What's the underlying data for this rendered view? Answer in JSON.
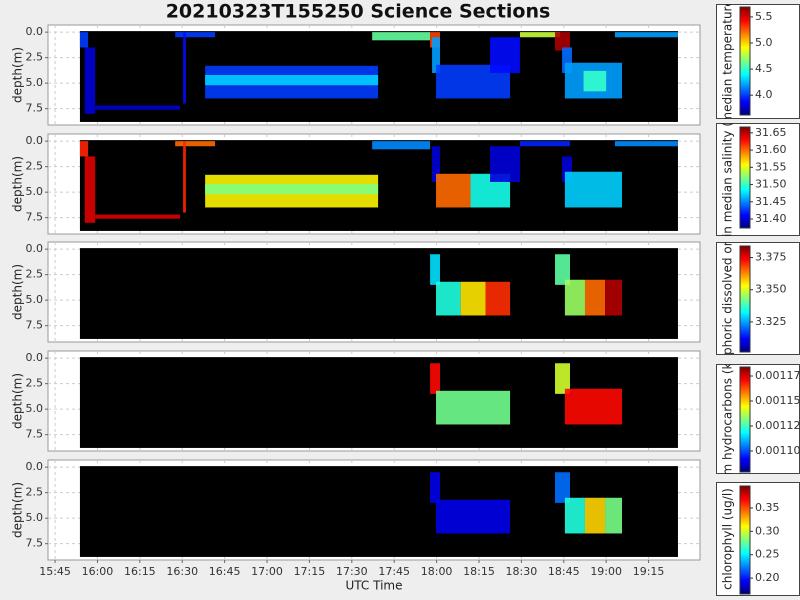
{
  "chart_data": [
    {
      "type": "heatmap",
      "title": "20210323T155250 Science Sections",
      "ylabel": "depth(m)",
      "colorbar_label": "median temperature",
      "xlim": [
        942.5,
        1173.2
      ],
      "xticks": [
        {
          "value": 945,
          "label": "15:45"
        },
        {
          "value": 960,
          "label": "16:00"
        },
        {
          "value": 975,
          "label": "16:15"
        },
        {
          "value": 990,
          "label": "16:30"
        },
        {
          "value": 1005,
          "label": "16:45"
        },
        {
          "value": 1020,
          "label": "17:00"
        },
        {
          "value": 1035,
          "label": "17:15"
        },
        {
          "value": 1050,
          "label": "17:30"
        },
        {
          "value": 1065,
          "label": "17:45"
        },
        {
          "value": 1080,
          "label": "18:00"
        },
        {
          "value": 1095,
          "label": "18:15"
        },
        {
          "value": 1110,
          "label": "18:30"
        },
        {
          "value": 1125,
          "label": "18:45"
        },
        {
          "value": 1140,
          "label": "19:00"
        },
        {
          "value": 1155,
          "label": "19:15"
        }
      ],
      "ylim": [
        9.1,
        -0.7
      ],
      "yticks": [
        {
          "value": 0,
          "label": "0.0"
        },
        2.5,
        {
          "value": 5,
          "label": "5.0"
        },
        7.5
      ],
      "grid": true,
      "coverage_t": [
        953.8,
        1165.4
      ],
      "coverage_d": [
        -0.1,
        8.8
      ],
      "clim": [
        3.62,
        5.69
      ],
      "cticks": [
        5.5,
        {
          "value": 5,
          "label": "5.0"
        },
        4.5,
        {
          "value": 4,
          "label": "4.0"
        }
      ],
      "blocks": {
        "t0": [
          953.8,
          955.5,
          959.2,
          987.5,
          990.3,
          998.1,
          998.1,
          1057.2,
          1077.7,
          1078.4,
          1079.8,
          1098.9,
          1109.5,
          1121.9,
          1124.4,
          1125.4,
          1132.0,
          1143.1
        ],
        "t1": [
          956.7,
          959.2,
          989.2,
          1001.6,
          991.3,
          1059.3,
          1059.3,
          1077.7,
          1081.2,
          1081.2,
          1106.0,
          1109.5,
          1123.7,
          1127.2,
          1127.9,
          1145.6,
          1140.0,
          1165.4
        ],
        "d0": [
          0,
          1.5,
          7.2,
          0,
          0,
          3.3,
          4.2,
          0,
          0,
          0.5,
          3.2,
          0.5,
          0,
          0,
          1.5,
          3,
          3.8,
          0
        ],
        "d1": [
          1.5,
          8,
          7.6,
          0.5,
          7,
          6.5,
          5.2,
          0.8,
          1.5,
          4,
          6.5,
          4,
          0.5,
          1.8,
          4,
          6.5,
          5.8,
          0.5
        ],
        "values": [
          4.0,
          3.8,
          3.8,
          4.0,
          3.9,
          4.0,
          4.3,
          4.6,
          5.3,
          4.2,
          4.0,
          3.9,
          4.8,
          5.6,
          4.1,
          4.2,
          4.5,
          4.2
        ]
      }
    },
    {
      "type": "heatmap",
      "ylabel": "depth(m)",
      "colorbar_label": "bin median salinity (p",
      "xlim": [
        942.5,
        1173.2
      ],
      "xticks": [
        945,
        960,
        975,
        990,
        1005,
        1020,
        1035,
        1050,
        1065,
        1080,
        1095,
        1110,
        1125,
        1140,
        1155
      ],
      "ylim": [
        9.1,
        -0.7
      ],
      "yticks": [
        {
          "value": 0,
          "label": "0.0"
        },
        2.5,
        {
          "value": 5,
          "label": "5.0"
        },
        7.5
      ],
      "grid": true,
      "coverage_t": [
        953.8,
        1165.4
      ],
      "coverage_d": [
        -0.1,
        8.8
      ],
      "clim": [
        31.374,
        31.667
      ],
      "cticks": [
        31.65,
        {
          "value": 31.6,
          "label": "31.60"
        },
        31.55,
        {
          "value": 31.5,
          "label": "31.50"
        },
        31.45,
        {
          "value": 31.4,
          "label": "31.40"
        }
      ],
      "blocks": {
        "t0": [
          953.8,
          955.5,
          959.2,
          987.5,
          990.3,
          998.1,
          998.1,
          1057.2,
          1078.4,
          1079.8,
          1092.0,
          1098.9,
          1109.5,
          1124.4,
          1125.4,
          1143.1
        ],
        "t1": [
          956.7,
          959.2,
          989.2,
          1001.6,
          991.3,
          1059.3,
          1059.3,
          1077.7,
          1081.2,
          1092.0,
          1106.0,
          1109.5,
          1127.2,
          1127.9,
          1145.6,
          1165.4
        ],
        "d0": [
          0,
          1.5,
          7.2,
          0,
          0,
          3.3,
          4.2,
          0,
          0.5,
          3.2,
          3.2,
          0.5,
          0,
          1.5,
          3,
          0
        ],
        "d1": [
          1.5,
          8,
          7.6,
          0.5,
          7,
          6.5,
          5.2,
          0.8,
          4,
          6.5,
          6.5,
          4,
          0.5,
          4,
          6.5,
          0.5
        ],
        "values": [
          31.62,
          31.64,
          31.64,
          31.6,
          31.62,
          31.56,
          31.52,
          31.45,
          31.4,
          31.6,
          31.49,
          31.4,
          31.42,
          31.4,
          31.47,
          31.45
        ]
      }
    },
    {
      "type": "heatmap",
      "ylabel": "depth(m)",
      "colorbar_label": "omophoric dissolved organi",
      "xlim": [
        942.5,
        1173.2
      ],
      "xticks": [
        945,
        960,
        975,
        990,
        1005,
        1020,
        1035,
        1050,
        1065,
        1080,
        1095,
        1110,
        1125,
        1140,
        1155
      ],
      "ylim": [
        9.1,
        -0.7
      ],
      "yticks": [
        {
          "value": 0,
          "label": "0.0"
        },
        2.5,
        {
          "value": 5,
          "label": "5.0"
        },
        7.5
      ],
      "grid": true,
      "coverage_t": [
        953.8,
        1165.4
      ],
      "coverage_d": [
        -0.1,
        8.8
      ],
      "clim": [
        3.3016,
        3.384
      ],
      "cticks": [
        3.375,
        {
          "value": 3.35,
          "label": "3.350"
        },
        3.325
      ],
      "blocks": {
        "t0": [
          1077.7,
          1079.8,
          1088.5,
          1097.3,
          1121.9,
          1125.4,
          1132.5,
          1139.6
        ],
        "t1": [
          1081.2,
          1088.5,
          1097.3,
          1106.0,
          1127.2,
          1132.5,
          1139.6,
          1145.6
        ],
        "d0": [
          0.5,
          3.2,
          3.2,
          3.2,
          0.5,
          3,
          3,
          3
        ],
        "d1": [
          3.5,
          6.5,
          6.5,
          6.5,
          3.5,
          6.5,
          6.5,
          6.5
        ],
        "values": [
          3.33,
          3.335,
          3.355,
          3.37,
          3.34,
          3.345,
          3.365,
          3.38
        ]
      }
    },
    {
      "type": "heatmap",
      "ylabel": "depth(m)",
      "colorbar_label": "um hydrocarbons (kg",
      "xlim": [
        942.5,
        1173.2
      ],
      "xticks": [
        945,
        960,
        975,
        990,
        1005,
        1020,
        1035,
        1050,
        1065,
        1080,
        1095,
        1110,
        1125,
        1140,
        1155
      ],
      "ylim": [
        9.1,
        -0.7
      ],
      "yticks": [
        {
          "value": 0,
          "label": "0.0"
        },
        2.5,
        {
          "value": 5,
          "label": "5.0"
        },
        7.5
      ],
      "grid": true,
      "coverage_t": [
        953.8,
        1165.4
      ],
      "coverage_d": [
        -0.1,
        8.8
      ],
      "clim": [
        0.001079,
        0.001184
      ],
      "cticks": [
        0.001175,
        {
          "value": 0.00115,
          "label": "0.001150"
        },
        0.001125,
        {
          "value": 0.0011,
          "label": "0.001100"
        }
      ],
      "blocks": {
        "t0": [
          1077.7,
          1079.8,
          1121.9,
          1125.4
        ],
        "t1": [
          1081.2,
          1106.0,
          1127.2,
          1145.6
        ],
        "d0": [
          0.5,
          3.2,
          0.5,
          3
        ],
        "d1": [
          3.5,
          6.5,
          3.5,
          6.5
        ],
        "values": [
          0.00117,
          0.00113,
          0.00114,
          0.00117
        ]
      }
    },
    {
      "type": "heatmap",
      "ylabel": "depth(m)",
      "xlabel": "UTC Time",
      "colorbar_label": "chlorophyll (ug/l)",
      "xlim": [
        942.5,
        1173.2
      ],
      "xticks": [
        {
          "value": 945,
          "label": "15:45"
        },
        {
          "value": 960,
          "label": "16:00"
        },
        {
          "value": 975,
          "label": "16:15"
        },
        {
          "value": 990,
          "label": "16:30"
        },
        {
          "value": 1005,
          "label": "16:45"
        },
        {
          "value": 1020,
          "label": "17:00"
        },
        {
          "value": 1035,
          "label": "17:15"
        },
        {
          "value": 1050,
          "label": "17:30"
        },
        {
          "value": 1065,
          "label": "17:45"
        },
        {
          "value": 1080,
          "label": "18:00"
        },
        {
          "value": 1095,
          "label": "18:15"
        },
        {
          "value": 1110,
          "label": "18:30"
        },
        {
          "value": 1125,
          "label": "18:45"
        },
        {
          "value": 1140,
          "label": "19:00"
        },
        {
          "value": 1155,
          "label": "19:15"
        }
      ],
      "ylim": [
        9.1,
        -0.7
      ],
      "yticks": [
        {
          "value": 0,
          "label": "0.0"
        },
        2.5,
        {
          "value": 5,
          "label": "5.0"
        },
        7.5
      ],
      "grid": true,
      "coverage_t": [
        953.8,
        1165.4
      ],
      "coverage_d": [
        -0.1,
        8.8
      ],
      "clim": [
        0.166,
        0.397
      ],
      "cticks": [
        0.35,
        {
          "value": 0.3,
          "label": "0.30"
        },
        0.25,
        {
          "value": 0.2,
          "label": "0.20"
        }
      ],
      "blocks": {
        "t0": [
          1077.7,
          1079.8,
          1121.9,
          1125.4,
          1132.5,
          1139.6
        ],
        "t1": [
          1081.2,
          1106.0,
          1127.2,
          1132.5,
          1139.6,
          1145.6
        ],
        "d0": [
          0.5,
          3.2,
          0.5,
          3,
          3,
          3
        ],
        "d1": [
          3.5,
          6.5,
          3.5,
          6.5,
          6.5,
          6.5
        ],
        "values": [
          0.19,
          0.19,
          0.22,
          0.26,
          0.32,
          0.28
        ]
      }
    }
  ]
}
